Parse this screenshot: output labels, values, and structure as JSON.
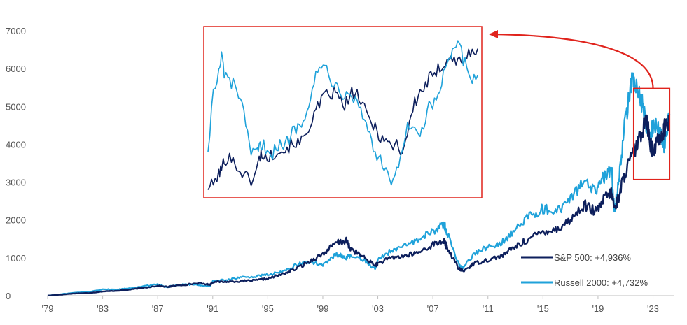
{
  "chart_data": {
    "type": "line",
    "title": "",
    "xlabel": "",
    "ylabel": "",
    "xlim": [
      1979,
      2024.5
    ],
    "ylim": [
      0,
      7000
    ],
    "y_ticks": [
      0,
      1000,
      2000,
      3000,
      4000,
      5000,
      6000,
      7000
    ],
    "x_ticks": [
      {
        "value": 1979,
        "label": "'79"
      },
      {
        "value": 1983,
        "label": "'83"
      },
      {
        "value": 1987,
        "label": "'87"
      },
      {
        "value": 1991,
        "label": "'91"
      },
      {
        "value": 1995,
        "label": "'95"
      },
      {
        "value": 1999,
        "label": "'99"
      },
      {
        "value": 2003,
        "label": "'03"
      },
      {
        "value": 2007,
        "label": "'07"
      },
      {
        "value": 2011,
        "label": "'11"
      },
      {
        "value": 2015,
        "label": "'15"
      },
      {
        "value": 2019,
        "label": "'19"
      },
      {
        "value": 2023,
        "label": "'23"
      }
    ],
    "grid": false,
    "legend_position": "bottom-right",
    "series": [
      {
        "name": "S&P 500: +4,936%",
        "color": "#0d1f5c",
        "x": [
          1979,
          1980,
          1981,
          1982,
          1983,
          1984,
          1985,
          1986,
          1987,
          1987.8,
          1988,
          1989,
          1990,
          1990.8,
          1991,
          1992,
          1993,
          1994,
          1995,
          1996,
          1997,
          1998,
          1999,
          2000,
          2000.7,
          2001,
          2002,
          2002.8,
          2003,
          2004,
          2005,
          2006,
          2007,
          2007.8,
          2008,
          2008.9,
          2009.2,
          2010,
          2011,
          2012,
          2013,
          2014,
          2015,
          2016,
          2017,
          2018,
          2018.9,
          2019.5,
          2020,
          2020.2,
          2020.5,
          2021,
          2021.5,
          2022,
          2022.5,
          2022.8,
          2023,
          2023.5,
          2023.8,
          2024.2
        ],
        "y": [
          0,
          30,
          60,
          70,
          110,
          130,
          160,
          210,
          260,
          230,
          250,
          290,
          330,
          290,
          360,
          370,
          380,
          400,
          450,
          560,
          700,
          900,
          1100,
          1400,
          1450,
          1250,
          1000,
          800,
          850,
          1000,
          1050,
          1150,
          1350,
          1450,
          1300,
          700,
          650,
          850,
          950,
          1050,
          1300,
          1500,
          1700,
          1750,
          2000,
          2400,
          2200,
          2600,
          2700,
          2300,
          2600,
          3300,
          3700,
          4100,
          4800,
          4000,
          3800,
          4200,
          4400,
          4700
        ]
      },
      {
        "name": "Russell 2000: +4,732%",
        "color": "#1fa2da",
        "x": [
          1979,
          1980,
          1981,
          1982,
          1983,
          1984,
          1985,
          1986,
          1987,
          1987.8,
          1988,
          1989,
          1990,
          1990.8,
          1991,
          1992,
          1993,
          1994,
          1995,
          1996,
          1997,
          1998,
          1999,
          2000,
          2000.7,
          2001,
          2002,
          2002.8,
          2003,
          2004,
          2005,
          2006,
          2007,
          2007.8,
          2008,
          2008.9,
          2009.2,
          2010,
          2011,
          2012,
          2013,
          2014,
          2015,
          2016,
          2017,
          2018,
          2018.9,
          2019.5,
          2020,
          2020.2,
          2020.5,
          2021,
          2021.5,
          2022,
          2022.5,
          2022.8,
          2023,
          2023.5,
          2023.8,
          2024.2
        ],
        "y": [
          0,
          40,
          80,
          100,
          170,
          160,
          200,
          250,
          300,
          220,
          260,
          300,
          280,
          250,
          380,
          420,
          480,
          500,
          550,
          620,
          800,
          900,
          800,
          1100,
          1000,
          1050,
          950,
          700,
          950,
          1200,
          1300,
          1500,
          1700,
          1900,
          1700,
          800,
          750,
          1100,
          1300,
          1400,
          1750,
          2100,
          2300,
          2200,
          2600,
          3000,
          2700,
          3200,
          3300,
          2200,
          3000,
          4700,
          5800,
          5400,
          4600,
          4300,
          4500,
          4300,
          4000,
          4800
        ]
      }
    ],
    "inset": {
      "x_range": [
        2021.8,
        2024.2
      ],
      "y_range": [
        3400,
        5400
      ],
      "series": [
        {
          "name": "S&P 500: +4,936%",
          "color": "#0d1f5c",
          "x": [
            0,
            2,
            4,
            5,
            6,
            8,
            10,
            12,
            14,
            16,
            18,
            19,
            20,
            22,
            24,
            26,
            28,
            30,
            32,
            34,
            36,
            38,
            40,
            42,
            44,
            46,
            48,
            50,
            52,
            54,
            56,
            58,
            60,
            62,
            64,
            66,
            68,
            70,
            72,
            74,
            76,
            78,
            80,
            82,
            84,
            86,
            88,
            90,
            92,
            94,
            96,
            98,
            100
          ],
          "y": [
            3480,
            3520,
            3640,
            3700,
            3800,
            3880,
            3750,
            3680,
            3620,
            3560,
            3680,
            3840,
            3900,
            3820,
            3880,
            3960,
            3920,
            3980,
            4040,
            4000,
            4120,
            4280,
            4400,
            4520,
            4600,
            4640,
            4600,
            4480,
            4520,
            4660,
            4580,
            4420,
            4300,
            4220,
            4100,
            4050,
            3980,
            4020,
            3900,
            4150,
            4450,
            4600,
            4700,
            4800,
            4820,
            4950,
            5050,
            5100,
            5000,
            5050,
            5100,
            5080,
            5180
          ]
        },
        {
          "name": "Russell 2000: +4,732%",
          "color": "#1fa2da",
          "x": [
            0,
            2,
            4,
            5,
            6,
            8,
            10,
            12,
            14,
            16,
            18,
            19,
            20,
            22,
            24,
            26,
            28,
            30,
            32,
            34,
            36,
            38,
            40,
            42,
            44,
            46,
            48,
            50,
            52,
            54,
            56,
            58,
            60,
            62,
            64,
            66,
            68,
            70,
            72,
            74,
            76,
            78,
            80,
            82,
            84,
            86,
            88,
            90,
            92,
            94,
            96,
            98,
            100
          ],
          "y": [
            3950,
            4650,
            4850,
            5080,
            4900,
            4750,
            4720,
            4600,
            4200,
            3880,
            3900,
            3950,
            4000,
            3950,
            3900,
            4000,
            3950,
            4080,
            4200,
            4250,
            4400,
            4600,
            4850,
            4920,
            5000,
            4800,
            4700,
            4650,
            4700,
            4580,
            4500,
            4300,
            4150,
            3900,
            3800,
            3650,
            3560,
            3700,
            3850,
            4250,
            4150,
            4100,
            4200,
            4450,
            4500,
            4700,
            4900,
            5050,
            5250,
            5100,
            4900,
            4800,
            4850
          ]
        }
      ]
    }
  }
}
